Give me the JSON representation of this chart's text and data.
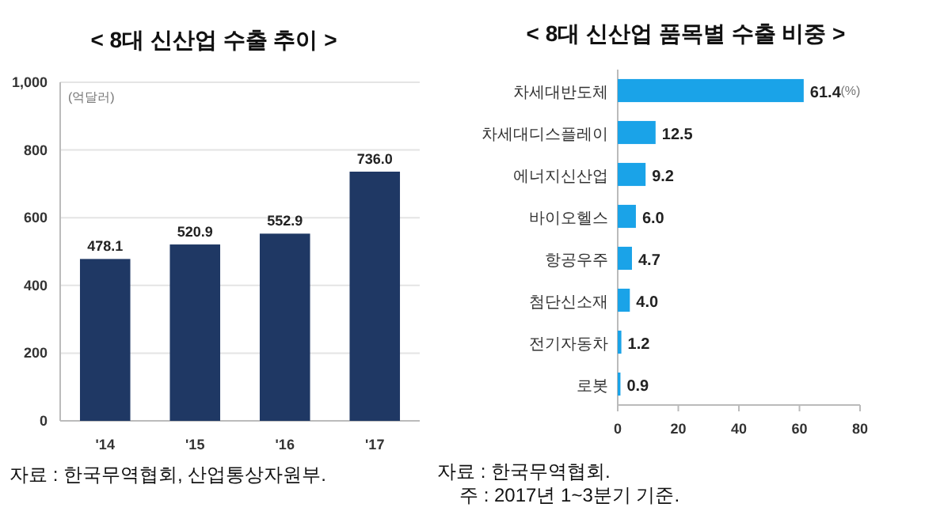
{
  "chart_data": [
    {
      "type": "bar",
      "title": "< 8대 신산업 수출 추이 >",
      "ylabel": "(억달러)",
      "categories": [
        "'14",
        "'15",
        "'16",
        "'17"
      ],
      "series": [
        {
          "color": "#1f3864",
          "values": [
            478.1,
            520.9,
            552.9,
            736.0
          ]
        }
      ],
      "value_labels": [
        "478.1",
        "520.9",
        "552.9",
        "736.0"
      ],
      "ylim": [
        0,
        1000
      ],
      "yticks": [
        0,
        200,
        400,
        600,
        800,
        {
          "value": 1000,
          "label": "1,000"
        }
      ],
      "grid": "y",
      "annotations": [
        "자료 : 한국무역협회, 산업통상자원부."
      ]
    },
    {
      "type": "bar",
      "orientation": "horizontal",
      "title": "< 8대 신산업 품목별 수출 비중  >",
      "xlabel": "(%)",
      "categories": [
        "차세대반도체",
        "차세대디스플레이",
        "에너지신산업",
        "바이오헬스",
        "항공우주",
        "첨단신소재",
        "전기자동차",
        "로봇"
      ],
      "series": [
        {
          "color": "#1aa3e8",
          "values": [
            61.4,
            12.5,
            9.2,
            6.0,
            4.7,
            4.0,
            1.2,
            0.9
          ]
        }
      ],
      "value_labels": [
        "61.4",
        "12.5",
        "9.2",
        "6.0",
        "4.7",
        "4.0",
        "1.2",
        "0.9"
      ],
      "xlim": [
        0,
        80
      ],
      "xticks": [
        0,
        20,
        40,
        60,
        80
      ],
      "grid": false,
      "annotations": [
        "자료 : 한국무역협회.",
        "주 : 2017년 1~3분기 기준."
      ]
    }
  ]
}
